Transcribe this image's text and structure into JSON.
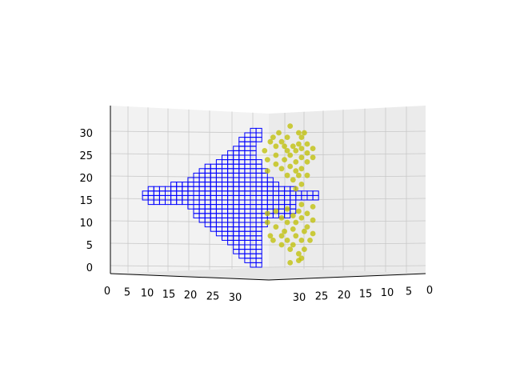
{
  "chart_data": {
    "type": "scatter",
    "projection": "3d",
    "title": "",
    "xlabel": "",
    "ylabel": "",
    "zlabel": "",
    "grid": true,
    "legend": "none",
    "axes": {
      "x": {
        "range": [
          0,
          32
        ],
        "ticks": [
          "0",
          "5",
          "10",
          "15",
          "20",
          "25",
          "30"
        ]
      },
      "y": {
        "range": [
          0,
          32
        ],
        "ticks": [
          "30",
          "25",
          "20",
          "15",
          "10",
          "5",
          "0"
        ]
      },
      "z": {
        "range": [
          0,
          32
        ],
        "ticks": [
          "0",
          "5",
          "10",
          "15",
          "20",
          "25",
          "30"
        ]
      }
    },
    "series": [
      {
        "kind": "voxels",
        "color": "#0000ff",
        "description_rows": [
          {
            "z": 31,
            "x0": 20,
            "x1": 22
          },
          {
            "z": 30,
            "x0": 19,
            "x1": 22
          },
          {
            "z": 29,
            "x0": 18,
            "x1": 22
          },
          {
            "z": 28,
            "x0": 18,
            "x1": 21
          },
          {
            "z": 27,
            "x0": 17,
            "x1": 21
          },
          {
            "z": 26,
            "x0": 16,
            "x1": 21
          },
          {
            "z": 25,
            "x0": 15,
            "x1": 21
          },
          {
            "z": 24,
            "x0": 14,
            "x1": 22
          },
          {
            "z": 23,
            "x0": 12,
            "x1": 22
          },
          {
            "z": 22,
            "x0": 11,
            "x1": 23
          },
          {
            "z": 21,
            "x0": 10,
            "x1": 23
          },
          {
            "z": 20,
            "x0": 9,
            "x1": 24
          },
          {
            "z": 19,
            "x0": 6,
            "x1": 25
          },
          {
            "z": 18,
            "x0": 2,
            "x1": 28
          },
          {
            "z": 17,
            "x0": 1,
            "x1": 32
          },
          {
            "z": 16,
            "x0": 1,
            "x1": 32
          },
          {
            "z": 15,
            "x0": 2,
            "x1": 28
          },
          {
            "z": 14,
            "x0": 9,
            "x1": 28
          },
          {
            "z": 13,
            "x0": 10,
            "x1": 28
          },
          {
            "z": 12,
            "x0": 10,
            "x1": 27
          },
          {
            "z": 11,
            "x0": 11,
            "x1": 23
          },
          {
            "z": 10,
            "x0": 12,
            "x1": 23
          },
          {
            "z": 9,
            "x0": 13,
            "x1": 22
          },
          {
            "z": 8,
            "x0": 14,
            "x1": 22
          },
          {
            "z": 7,
            "x0": 15,
            "x1": 22
          },
          {
            "z": 6,
            "x0": 16,
            "x1": 22
          },
          {
            "z": 5,
            "x0": 17,
            "x1": 22
          },
          {
            "z": 4,
            "x0": 17,
            "x1": 22
          },
          {
            "z": 3,
            "x0": 18,
            "x1": 22
          },
          {
            "z": 2,
            "x0": 19,
            "x1": 22
          },
          {
            "z": 1,
            "x0": 20,
            "x1": 22
          }
        ]
      },
      {
        "kind": "points",
        "color": "#bfbf00",
        "points": [
          [
            27,
            31.5
          ],
          [
            25,
            30
          ],
          [
            28.5,
            30
          ],
          [
            29.5,
            30
          ],
          [
            24,
            29
          ],
          [
            26.5,
            29
          ],
          [
            29,
            29
          ],
          [
            23.5,
            28
          ],
          [
            25.5,
            28
          ],
          [
            28.5,
            27.5
          ],
          [
            30,
            27.5
          ],
          [
            24.5,
            27
          ],
          [
            26,
            27
          ],
          [
            27.5,
            27
          ],
          [
            29,
            26.5
          ],
          [
            31,
            26.5
          ],
          [
            22.5,
            26
          ],
          [
            26.5,
            26
          ],
          [
            28,
            26
          ],
          [
            30,
            25.5
          ],
          [
            24.5,
            25
          ],
          [
            27,
            25
          ],
          [
            29,
            24.5
          ],
          [
            31,
            24.5
          ],
          [
            23,
            24
          ],
          [
            26,
            24
          ],
          [
            28,
            23.5
          ],
          [
            30,
            23.5
          ],
          [
            24.5,
            23
          ],
          [
            27,
            22.5
          ],
          [
            29,
            22
          ],
          [
            25.5,
            22
          ],
          [
            28,
            21.5
          ],
          [
            23,
            21.5
          ],
          [
            26.5,
            20.5
          ],
          [
            28.5,
            20.5
          ],
          [
            30,
            20.5
          ],
          [
            27.5,
            19.5
          ],
          [
            29,
            18.5
          ],
          [
            28,
            17.5
          ],
          [
            29,
            14
          ],
          [
            31,
            13.5
          ],
          [
            26.5,
            13
          ],
          [
            28.5,
            12.5
          ],
          [
            24.5,
            12.5
          ],
          [
            30,
            12
          ],
          [
            23,
            12
          ],
          [
            27.5,
            11.5
          ],
          [
            25.5,
            11
          ],
          [
            29,
            11
          ],
          [
            31,
            10.5
          ],
          [
            23,
            10
          ],
          [
            26.5,
            10
          ],
          [
            28,
            10
          ],
          [
            24.5,
            9
          ],
          [
            30,
            9
          ],
          [
            27.5,
            8.5
          ],
          [
            26,
            8
          ],
          [
            29.5,
            8
          ],
          [
            31,
            7.5
          ],
          [
            23.5,
            7
          ],
          [
            25.5,
            7
          ],
          [
            28,
            7
          ],
          [
            24,
            6
          ],
          [
            26.5,
            6
          ],
          [
            29,
            6
          ],
          [
            30.5,
            6
          ],
          [
            27.5,
            5
          ],
          [
            25.5,
            5
          ],
          [
            29.5,
            4
          ],
          [
            27,
            4
          ],
          [
            28.5,
            3
          ],
          [
            29,
            2
          ],
          [
            28.5,
            1.5
          ],
          [
            27,
            1
          ]
        ]
      }
    ]
  }
}
